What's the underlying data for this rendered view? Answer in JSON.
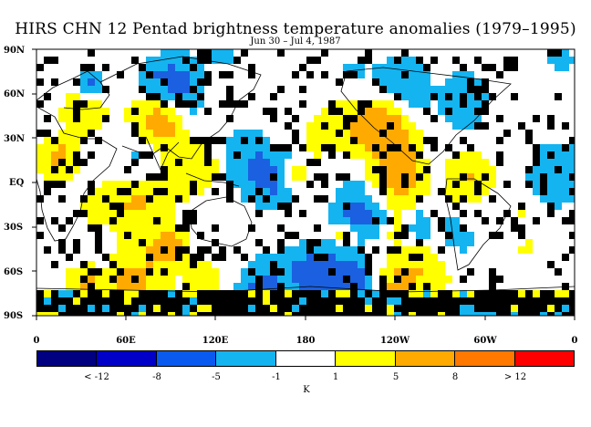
{
  "title": "HIRS CHN 12 Pentad brightness temperature anomalies (1979–1995)",
  "subtitle": "Jun 30 – Jul 4, 1987",
  "lat_labels": [
    "90N",
    "60N",
    "30N",
    "EQ",
    "30S",
    "60S",
    "90S"
  ],
  "lon_labels": [
    "0",
    "60E",
    "120E",
    "180",
    "120W",
    "60W",
    "0"
  ],
  "colorbar": {
    "unit": "K",
    "labels": [
      "< -12",
      "-8",
      "-5",
      "-1",
      "1",
      "5",
      "8",
      "> 12"
    ],
    "colors": [
      "#000080",
      "#0000c8",
      "#0a5af0",
      "#14b4f0",
      "#ffffff",
      "#ffff00",
      "#ffaa00",
      "#ff7800",
      "#ff0000"
    ]
  },
  "legend_colors": {
    "missing": "#000000",
    "strong_negative": "#1a60e0",
    "negative": "#14b4f0",
    "neutral": "#ffffff",
    "positive": "#ffff00",
    "strong_positive": "#ffaa00"
  }
}
